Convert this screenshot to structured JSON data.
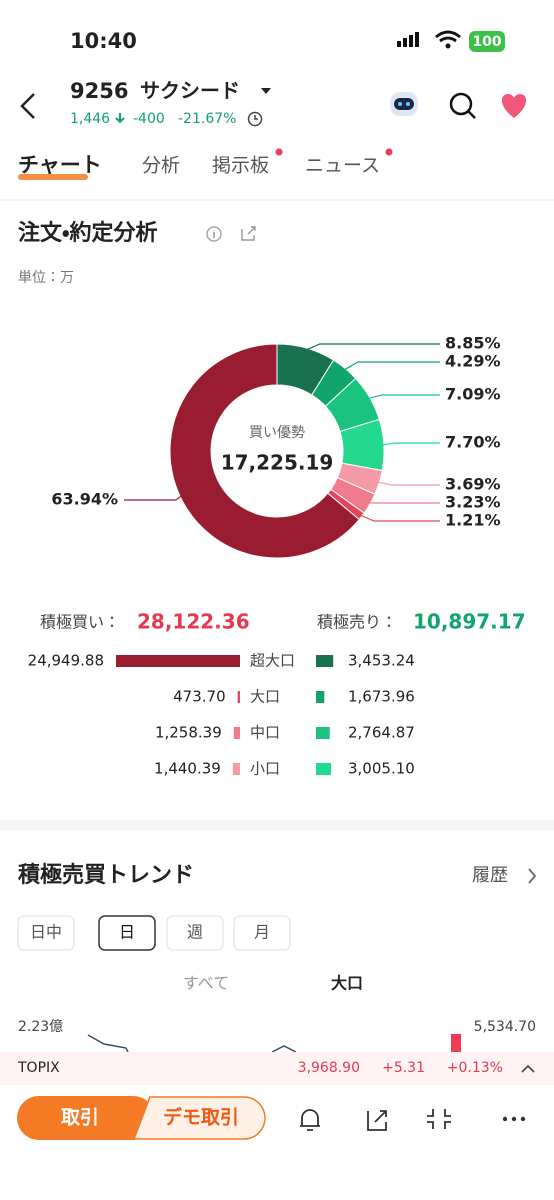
{
  "status_bar": {
    "time": "10:40",
    "battery": "100"
  },
  "header": {
    "code": "9256",
    "name": "サクシード",
    "price": "1,446",
    "change": "-400",
    "change_pct": "-21.67%"
  },
  "tabs": [
    "チャート",
    "分析",
    "掲示板",
    "ニュース"
  ],
  "section": {
    "title": "注文・約定分析",
    "unit": "単位：万"
  },
  "chart_data": {
    "type": "donut",
    "center_label": "買い優勢",
    "center_value": "17,225.19",
    "values": [
      8.85,
      4.29,
      7.09,
      7.7,
      3.69,
      3.23,
      1.21,
      63.94
    ],
    "value_labels": [
      "8.85%",
      "4.29%",
      "7.09%",
      "7.70%",
      "3.69%",
      "3.23%",
      "1.21%",
      "63.94%"
    ],
    "colors": [
      "#18714f",
      "#11a46b",
      "#1ac47e",
      "#22d98d",
      "#f79aa8",
      "#f07b8c",
      "#e3465c",
      "#9a1c30"
    ]
  },
  "flows": {
    "buy_label": "積極買い：",
    "buy_total": "28,122.36",
    "sell_label": "積極売り：",
    "sell_total": "10,897.17",
    "categories": [
      "超大口",
      "大口",
      "中口",
      "小口"
    ],
    "buy": {
      "values": [
        24949.88,
        473.7,
        1258.39,
        1440.39
      ],
      "value_labels": [
        "24,949.88",
        "473.70",
        "1,258.39",
        "1,440.39"
      ],
      "colors": [
        "#9a1c30",
        "#e3465c",
        "#f07b8c",
        "#f79aa8"
      ]
    },
    "sell": {
      "values": [
        3453.24,
        1673.96,
        2764.87,
        3005.1
      ],
      "value_labels": [
        "3,453.24",
        "1,673.96",
        "2,764.87",
        "3,005.10"
      ],
      "colors": [
        "#18714f",
        "#11a46b",
        "#1ac47e",
        "#22d98d"
      ]
    }
  },
  "trend": {
    "title": "積極売買トレンド",
    "history": "履歴",
    "periods": [
      "日中",
      "日",
      "週",
      "月"
    ],
    "selected_period": 1,
    "views": [
      "すべて",
      "大口"
    ],
    "left_axis_top": "2.23億",
    "right_axis_top": "5,534.70"
  },
  "index_bar": {
    "name": "TOPIX",
    "price": "3,968.90",
    "change": "+5.31",
    "change_pct": "+0.13%"
  },
  "bottom_bar": {
    "trade": "取引",
    "demo_trade": "デモ取引"
  }
}
